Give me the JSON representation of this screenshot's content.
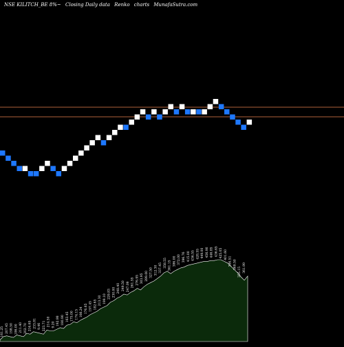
{
  "header": {
    "symbol": "NSE KILITCH_BE 8%~",
    "type": "Closing Daily data",
    "chart": "Renko",
    "charts_word": "charts",
    "site": "MunafaSutra.com"
  },
  "colors": {
    "background": "#000000",
    "up_brick": "#ffffff",
    "down_brick": "#1e78ff",
    "reference_line": "#b0623a",
    "volume_fill": "#0b2a0b",
    "volume_stroke": "#ffffff",
    "label_text": "#ffffff"
  },
  "chart_data": {
    "type": "renko",
    "brick_size_percent": 8,
    "reference_levels": [
      "upper",
      "lower"
    ],
    "bricks": [
      {
        "dir": "down",
        "level": 0
      },
      {
        "dir": "down",
        "level": -1
      },
      {
        "dir": "down",
        "level": -2
      },
      {
        "dir": "down",
        "level": -3
      },
      {
        "dir": "up",
        "level": -3
      },
      {
        "dir": "down",
        "level": -4
      },
      {
        "dir": "down",
        "level": -4
      },
      {
        "dir": "up",
        "level": -3
      },
      {
        "dir": "up",
        "level": -2
      },
      {
        "dir": "down",
        "level": -3
      },
      {
        "dir": "down",
        "level": -4
      },
      {
        "dir": "up",
        "level": -3
      },
      {
        "dir": "up",
        "level": -2
      },
      {
        "dir": "up",
        "level": -1
      },
      {
        "dir": "up",
        "level": 0
      },
      {
        "dir": "up",
        "level": 1
      },
      {
        "dir": "up",
        "level": 2
      },
      {
        "dir": "up",
        "level": 3
      },
      {
        "dir": "down",
        "level": 2
      },
      {
        "dir": "up",
        "level": 3
      },
      {
        "dir": "up",
        "level": 4
      },
      {
        "dir": "up",
        "level": 5
      },
      {
        "dir": "down",
        "level": 5
      },
      {
        "dir": "up",
        "level": 6
      },
      {
        "dir": "up",
        "level": 7
      },
      {
        "dir": "up",
        "level": 8
      },
      {
        "dir": "down",
        "level": 7
      },
      {
        "dir": "up",
        "level": 8
      },
      {
        "dir": "down",
        "level": 7
      },
      {
        "dir": "up",
        "level": 8
      },
      {
        "dir": "up",
        "level": 9
      },
      {
        "dir": "down",
        "level": 8
      },
      {
        "dir": "up",
        "level": 9
      },
      {
        "dir": "down",
        "level": 8
      },
      {
        "dir": "up",
        "level": 8
      },
      {
        "dir": "down",
        "level": 8
      },
      {
        "dir": "up",
        "level": 8
      },
      {
        "dir": "up",
        "level": 9
      },
      {
        "dir": "up",
        "level": 10
      },
      {
        "dir": "down",
        "level": 9
      },
      {
        "dir": "down",
        "level": 8
      },
      {
        "dir": "down",
        "level": 7
      },
      {
        "dir": "down",
        "level": 6
      },
      {
        "dir": "down",
        "level": 5
      },
      {
        "dir": "up",
        "level": 6
      }
    ],
    "price_labels": [
      "161.25",
      "207.45",
      "198.50",
      "186.00",
      "211.40",
      "202.70",
      "216.65",
      "233.81",
      "9.46",
      "223.71",
      "214.50",
      "9.20",
      "192.98",
      "180.90",
      "163.45",
      "175.00",
      "174.15",
      "166.24",
      "176.65",
      "197.45",
      "182.65",
      "213.30",
      "199.10",
      "229.83",
      "230.00",
      "248.40",
      "249.50",
      "247.09",
      "261.55",
      "276.95",
      "303.95",
      "289.00",
      "327.50",
      "312.30",
      "337.45",
      "358.55",
      "361.15",
      "386.00",
      "372.00",
      "396.76",
      "415.00",
      "436.55",
      "428.55",
      "449.00",
      "456.90",
      "446.85",
      "436.65",
      "425.05",
      "401.60",
      "386.51",
      "369.50",
      "355.15",
      "361.99"
    ],
    "volume_area": [
      2,
      6,
      7,
      6,
      5,
      8,
      7,
      6,
      10,
      9,
      12,
      11,
      10,
      9,
      14,
      13,
      13,
      15,
      17,
      16,
      20,
      21,
      24,
      23,
      26,
      28,
      30,
      33,
      35,
      37,
      40,
      42,
      44,
      48,
      50,
      53,
      55,
      58,
      57,
      60,
      62,
      65,
      63,
      67,
      70,
      72,
      74,
      77,
      80,
      84,
      86,
      83,
      86,
      88,
      90,
      91,
      93,
      94,
      95,
      96,
      97,
      98,
      98,
      99,
      99,
      100,
      100,
      98,
      96,
      92,
      88,
      84,
      79,
      75,
      80
    ]
  }
}
